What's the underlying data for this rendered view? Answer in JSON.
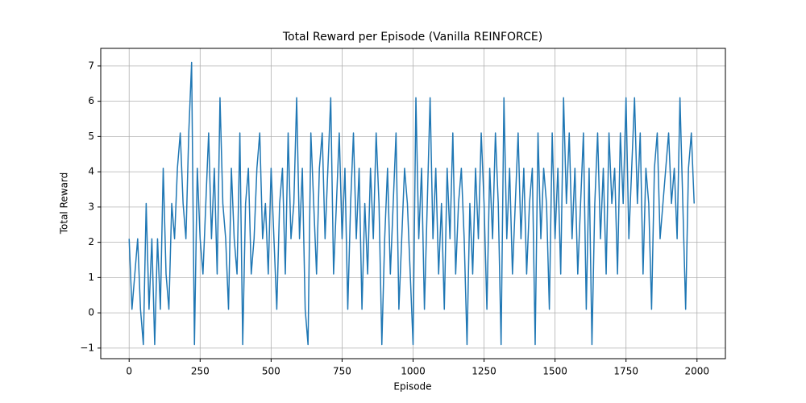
{
  "chart_data": {
    "type": "line",
    "title": "Total Reward per Episode (Vanilla REINFORCE)",
    "x_label": "Episode",
    "y_label": "Total Reward",
    "xlim": [
      -100,
      2100
    ],
    "ylim": [
      -1.3,
      7.5
    ],
    "xticks": [
      0,
      250,
      500,
      750,
      1000,
      1250,
      1500,
      1750,
      2000
    ],
    "yticks": [
      {
        "value": -1,
        "label": "−1"
      },
      0,
      1,
      2,
      3,
      4,
      5,
      6,
      7
    ],
    "grid": true,
    "series": [
      {
        "color": "#1f77b4",
        "x": [
          0,
          10,
          20,
          30,
          40,
          50,
          60,
          70,
          80,
          90,
          100,
          110,
          120,
          130,
          140,
          150,
          160,
          170,
          180,
          190,
          200,
          210,
          220,
          230,
          240,
          250,
          260,
          270,
          280,
          290,
          300,
          310,
          320,
          330,
          340,
          350,
          360,
          370,
          380,
          390,
          400,
          410,
          420,
          430,
          440,
          450,
          460,
          470,
          480,
          490,
          500,
          510,
          520,
          530,
          540,
          550,
          560,
          570,
          580,
          590,
          600,
          610,
          620,
          630,
          640,
          650,
          660,
          670,
          680,
          690,
          700,
          710,
          720,
          730,
          740,
          750,
          760,
          770,
          780,
          790,
          800,
          810,
          820,
          830,
          840,
          850,
          860,
          870,
          880,
          890,
          900,
          910,
          920,
          930,
          940,
          950,
          960,
          970,
          980,
          990,
          1000,
          1010,
          1020,
          1030,
          1040,
          1050,
          1060,
          1070,
          1080,
          1090,
          1100,
          1110,
          1120,
          1130,
          1140,
          1150,
          1160,
          1170,
          1180,
          1190,
          1200,
          1210,
          1220,
          1230,
          1240,
          1250,
          1260,
          1270,
          1280,
          1290,
          1300,
          1310,
          1320,
          1330,
          1340,
          1350,
          1360,
          1370,
          1380,
          1390,
          1400,
          1410,
          1420,
          1430,
          1440,
          1450,
          1460,
          1470,
          1480,
          1490,
          1500,
          1510,
          1520,
          1530,
          1540,
          1550,
          1560,
          1570,
          1580,
          1590,
          1600,
          1610,
          1620,
          1630,
          1640,
          1650,
          1660,
          1670,
          1680,
          1690,
          1700,
          1710,
          1720,
          1730,
          1740,
          1750,
          1760,
          1770,
          1780,
          1790,
          1800,
          1810,
          1820,
          1830,
          1840,
          1850,
          1860,
          1870,
          1880,
          1890,
          1900,
          1910,
          1920,
          1930,
          1940,
          1950,
          1960,
          1970,
          1980,
          1990
        ],
        "values": [
          2.1,
          0.1,
          1.1,
          2.1,
          0.1,
          -0.9,
          3.1,
          0.1,
          2.1,
          -0.9,
          2.1,
          0.1,
          4.1,
          1.1,
          0.1,
          3.1,
          2.1,
          4.1,
          5.1,
          3.1,
          2.1,
          5.1,
          7.1,
          -0.9,
          4.1,
          2.1,
          1.1,
          3.1,
          5.1,
          2.1,
          4.1,
          1.1,
          6.1,
          3.1,
          2.1,
          0.1,
          4.1,
          2.1,
          1.1,
          5.1,
          -0.9,
          3.1,
          4.1,
          1.1,
          2.1,
          4.1,
          5.1,
          2.1,
          3.1,
          1.1,
          4.1,
          2.1,
          0.1,
          3.1,
          4.1,
          1.1,
          5.1,
          2.1,
          3.1,
          6.1,
          2.1,
          4.1,
          0.1,
          -0.9,
          5.1,
          3.1,
          1.1,
          4.1,
          5.1,
          2.1,
          4.1,
          6.1,
          1.1,
          3.1,
          5.1,
          2.1,
          4.1,
          0.1,
          3.1,
          5.1,
          2.1,
          4.1,
          0.1,
          3.1,
          1.1,
          4.1,
          2.1,
          5.1,
          3.1,
          -0.9,
          2.1,
          4.1,
          1.1,
          3.1,
          5.1,
          0.1,
          2.1,
          4.1,
          3.1,
          1.1,
          -0.9,
          6.1,
          2.1,
          4.1,
          0.1,
          3.1,
          6.1,
          2.1,
          4.1,
          1.1,
          3.1,
          0.1,
          4.1,
          2.1,
          5.1,
          1.1,
          3.1,
          4.1,
          2.1,
          -0.9,
          3.1,
          1.1,
          4.1,
          2.1,
          5.1,
          3.1,
          0.1,
          4.1,
          2.1,
          5.1,
          3.1,
          -0.9,
          6.1,
          2.1,
          4.1,
          1.1,
          3.1,
          5.1,
          2.1,
          4.1,
          1.1,
          3.1,
          4.1,
          -0.9,
          5.1,
          2.1,
          4.1,
          3.1,
          0.1,
          5.1,
          2.1,
          4.1,
          1.1,
          6.1,
          3.1,
          5.1,
          2.1,
          4.1,
          1.1,
          3.1,
          5.1,
          0.1,
          4.1,
          -0.9,
          3.1,
          5.1,
          2.1,
          4.1,
          1.1,
          5.1,
          3.1,
          4.1,
          1.1,
          5.1,
          3.1,
          6.1,
          2.1,
          4.1,
          6.1,
          3.1,
          5.1,
          1.1,
          4.1,
          3.1,
          0.1,
          4.1,
          5.1,
          2.1,
          3.1,
          4.1,
          5.1,
          3.1,
          4.1,
          2.1,
          6.1,
          3.1,
          0.1,
          4.1,
          5.1,
          3.1
        ]
      }
    ]
  }
}
